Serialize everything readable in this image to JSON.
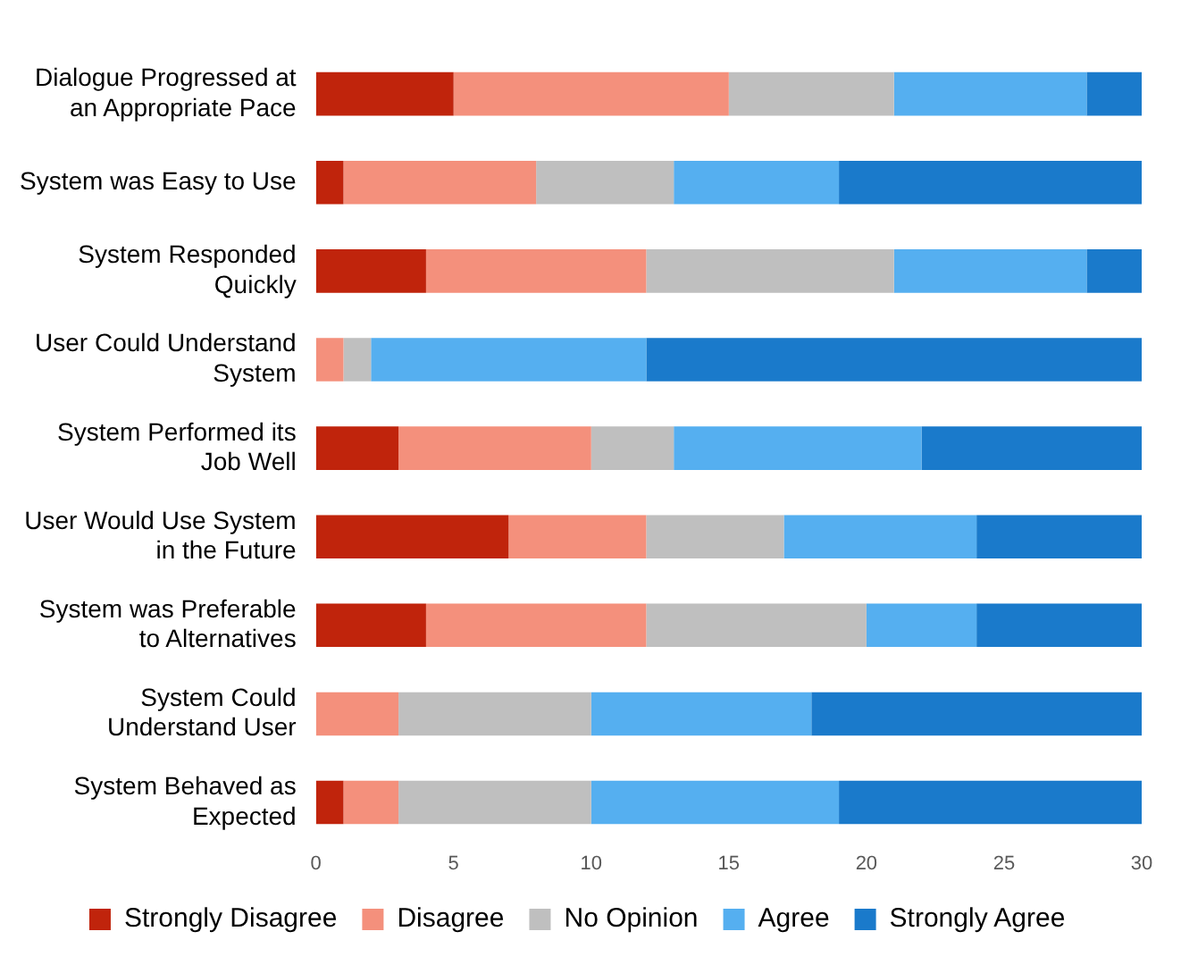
{
  "chart_data": {
    "type": "bar",
    "orientation": "horizontal",
    "stacked": true,
    "categories": [
      "Dialogue Progressed at an Appropriate Pace",
      "System was Easy to Use",
      "System Responded Quickly",
      "User Could Understand System",
      "System Performed its Job Well",
      "User Would Use System in the Future",
      "System was Preferable to Alternatives",
      "System Could Understand User",
      "System Behaved as Expected"
    ],
    "series": [
      {
        "name": "Strongly Disagree",
        "color": "#c0240c",
        "values": [
          5,
          1,
          4,
          0,
          3,
          7,
          4,
          0,
          1
        ]
      },
      {
        "name": "Disagree",
        "color": "#f4907c",
        "values": [
          10,
          7,
          8,
          1,
          7,
          5,
          8,
          3,
          2
        ]
      },
      {
        "name": "No Opinion",
        "color": "#bfbfbf",
        "values": [
          6,
          5,
          9,
          1,
          3,
          5,
          8,
          7,
          7
        ]
      },
      {
        "name": "Agree",
        "color": "#55aff0",
        "values": [
          7,
          6,
          7,
          10,
          9,
          7,
          4,
          8,
          9
        ]
      },
      {
        "name": "Strongly Agree",
        "color": "#1a7acb",
        "values": [
          2,
          11,
          2,
          18,
          8,
          6,
          6,
          12,
          11
        ]
      }
    ],
    "xlim": [
      0,
      30
    ],
    "xticks": [
      0,
      5,
      10,
      15,
      20,
      25,
      30
    ],
    "grid": false,
    "legend": "bottom"
  }
}
